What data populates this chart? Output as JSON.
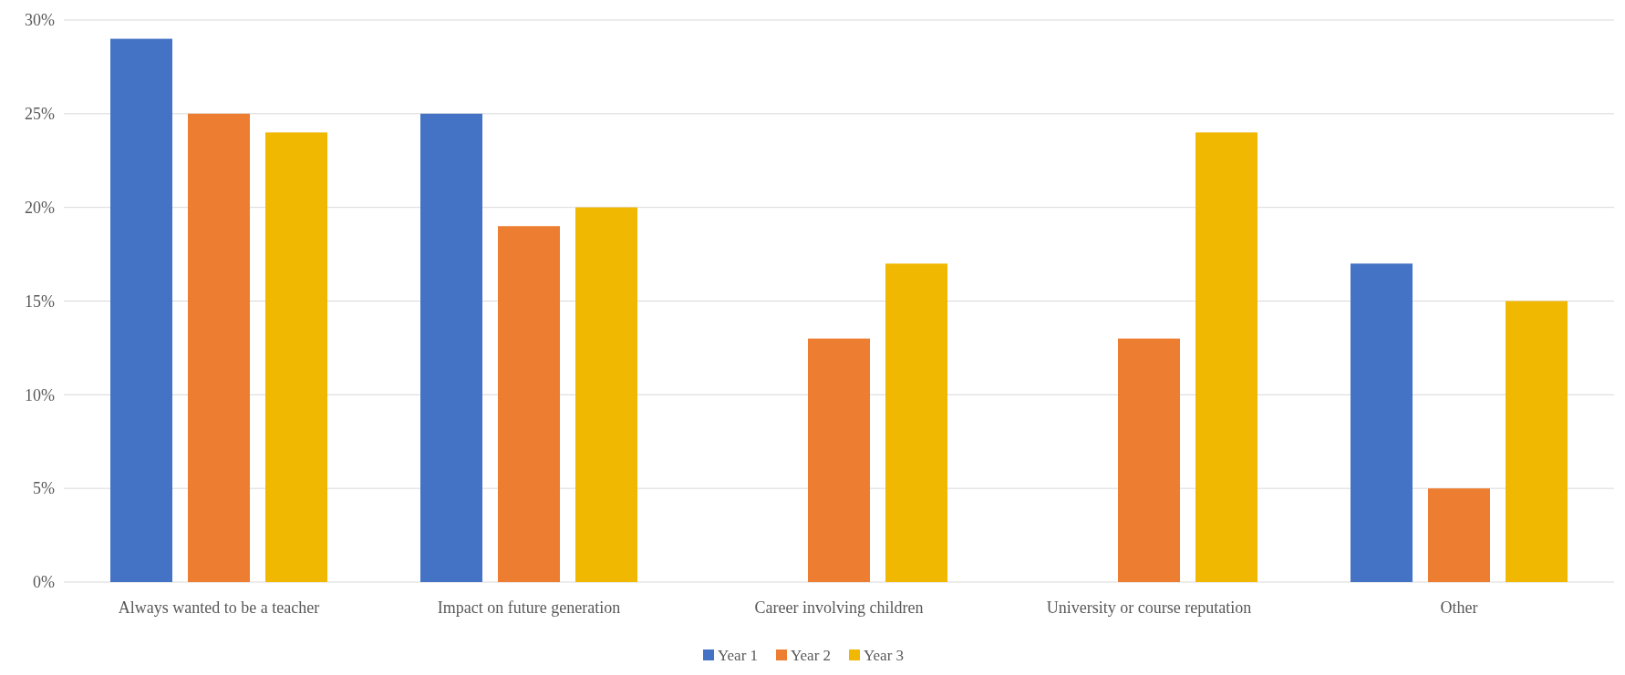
{
  "chart_data": {
    "type": "bar",
    "categories": [
      "Always wanted to be a teacher",
      "Impact on future generation",
      "Career involving children",
      "University or course reputation",
      "Other"
    ],
    "series": [
      {
        "name": "Year 1",
        "color": "#4472c4",
        "values": [
          29,
          25,
          null,
          null,
          17
        ]
      },
      {
        "name": "Year 2",
        "color": "#ed7d31",
        "values": [
          25,
          19,
          13,
          13,
          5
        ]
      },
      {
        "name": "Year 3",
        "color": "#f0b800",
        "values": [
          24,
          20,
          17,
          24,
          15
        ]
      }
    ],
    "ylim": [
      0,
      30
    ],
    "yticks": [
      {
        "value": 0,
        "label": "0%"
      },
      {
        "value": 5,
        "label": "5%"
      },
      {
        "value": 10,
        "label": "10%"
      },
      {
        "value": 15,
        "label": "15%"
      },
      {
        "value": 20,
        "label": "20%"
      },
      {
        "value": 25,
        "label": "25%"
      },
      {
        "value": 30,
        "label": "30%"
      }
    ],
    "grid": "y",
    "legend": "bottom"
  }
}
